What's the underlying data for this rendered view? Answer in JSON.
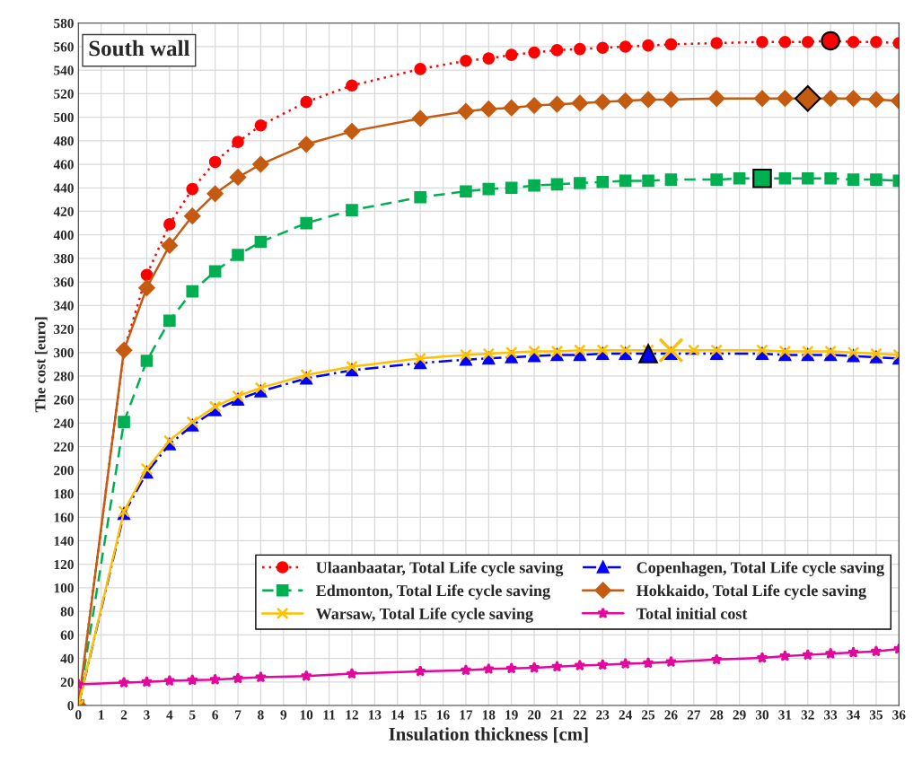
{
  "chart_data": {
    "type": "line",
    "title": "South wall",
    "xlabel": "Insulation thickness [cm]",
    "ylabel": "The cost [euro]",
    "xlim": [
      0,
      36
    ],
    "xticks": [
      0,
      1,
      2,
      3,
      4,
      5,
      6,
      7,
      8,
      9,
      10,
      11,
      12,
      13,
      14,
      15,
      16,
      17,
      18,
      19,
      20,
      21,
      22,
      23,
      24,
      25,
      26,
      27,
      28,
      29,
      30,
      31,
      32,
      33,
      34,
      35,
      36
    ],
    "ylim": [
      0,
      580
    ],
    "yticks": [
      0,
      20,
      40,
      60,
      80,
      100,
      120,
      140,
      160,
      180,
      200,
      220,
      240,
      260,
      280,
      300,
      320,
      340,
      360,
      380,
      400,
      420,
      440,
      460,
      480,
      500,
      520,
      540,
      560,
      580
    ],
    "grid": true,
    "legend": "bottom right",
    "series": [
      {
        "name": "Ulaanbaatar, Total Life cycle saving",
        "color": "#ff0000",
        "marker": "circle",
        "line_style": "dotted",
        "x": [
          0,
          2,
          3,
          4,
          5,
          6,
          7,
          8,
          10,
          12,
          15,
          17,
          18,
          19,
          20,
          21,
          22,
          23,
          24,
          25,
          26,
          28,
          30,
          31,
          32,
          33,
          34,
          35,
          36
        ],
        "values": [
          0,
          302,
          366,
          409,
          439,
          462,
          479,
          493,
          513,
          527,
          541,
          548,
          550,
          553,
          555,
          557,
          558,
          559,
          560,
          561,
          562,
          563,
          564,
          564,
          564,
          565,
          564,
          564,
          563
        ]
      },
      {
        "name": "Copenhagen, Total Life cycle saving",
        "color": "#0000ff",
        "marker": "triangle",
        "line_style": "dashdot",
        "x": [
          0,
          2,
          3,
          4,
          5,
          6,
          7,
          8,
          10,
          12,
          15,
          17,
          18,
          19,
          20,
          21,
          22,
          23,
          24,
          25,
          26,
          28,
          30,
          31,
          32,
          33,
          34,
          35,
          36
        ],
        "values": [
          0,
          163,
          198,
          222,
          238,
          251,
          260,
          267,
          278,
          285,
          291,
          294,
          295,
          296,
          297,
          298,
          298,
          299,
          299,
          299,
          299,
          299,
          299,
          298,
          298,
          298,
          297,
          296,
          295
        ]
      },
      {
        "name": "Edmonton, Total Life cycle saving",
        "color": "#00b050",
        "marker": "square",
        "line_style": "dashed",
        "x": [
          0,
          2,
          3,
          4,
          5,
          6,
          7,
          8,
          10,
          12,
          15,
          17,
          18,
          19,
          20,
          21,
          22,
          23,
          24,
          25,
          26,
          28,
          29,
          30,
          31,
          32,
          33,
          34,
          35,
          36
        ],
        "values": [
          0,
          241,
          293,
          327,
          352,
          369,
          383,
          394,
          410,
          421,
          432,
          437,
          439,
          440,
          442,
          443,
          444,
          445,
          446,
          446,
          447,
          447,
          448,
          448,
          448,
          448,
          448,
          447,
          447,
          446
        ]
      },
      {
        "name": "Hokkaido, Total Life cycle saving",
        "color": "#c55a11",
        "marker": "diamond",
        "line_style": "solid",
        "x": [
          0,
          2,
          3,
          4,
          5,
          6,
          7,
          8,
          10,
          12,
          15,
          17,
          18,
          19,
          20,
          21,
          22,
          23,
          24,
          25,
          26,
          28,
          30,
          31,
          32,
          33,
          34,
          35,
          36
        ],
        "values": [
          0,
          302,
          355,
          391,
          416,
          435,
          449,
          460,
          477,
          488,
          499,
          505,
          507,
          508,
          510,
          511,
          512,
          513,
          514,
          515,
          515,
          516,
          516,
          516,
          516,
          516,
          516,
          515,
          514
        ]
      },
      {
        "name": "Warsaw, Total Life cycle saving",
        "color": "#ffc000",
        "marker": "cross",
        "line_style": "solid",
        "x": [
          0,
          2,
          3,
          4,
          5,
          6,
          7,
          8,
          10,
          12,
          15,
          17,
          18,
          19,
          20,
          21,
          22,
          23,
          24,
          25,
          26,
          27,
          28,
          30,
          31,
          32,
          33,
          34,
          35,
          36
        ],
        "values": [
          0,
          165,
          201,
          225,
          241,
          254,
          263,
          270,
          281,
          288,
          295,
          298,
          299,
          300,
          301,
          301,
          302,
          302,
          302,
          302,
          302,
          302,
          302,
          302,
          301,
          301,
          301,
          300,
          299,
          298
        ]
      },
      {
        "name": "Total initial cost",
        "color": "#e3079c",
        "marker": "star",
        "line_style": "solid",
        "x": [
          0,
          2,
          3,
          4,
          5,
          6,
          7,
          8,
          10,
          12,
          15,
          17,
          18,
          19,
          20,
          21,
          22,
          23,
          24,
          25,
          26,
          28,
          30,
          31,
          32,
          33,
          34,
          35,
          36
        ],
        "values": [
          18,
          19.5,
          20,
          21,
          21.5,
          22,
          23,
          24,
          25,
          27,
          29,
          30,
          31,
          31.5,
          32,
          33,
          34,
          34.5,
          35.5,
          36,
          37,
          39,
          40.5,
          42,
          43,
          44,
          45,
          46,
          48
        ]
      },
      {
        "type": "scatter",
        "color": "#ff0000",
        "marker": "circle",
        "x": [
          33
        ],
        "values": [
          565
        ]
      },
      {
        "type": "scatter",
        "color": "#c55a11",
        "marker": "diamond",
        "x": [
          32
        ],
        "values": [
          516
        ]
      },
      {
        "type": "scatter",
        "color": "#00b050",
        "marker": "square",
        "x": [
          30
        ],
        "values": [
          448
        ]
      },
      {
        "type": "scatter",
        "color": "#0000ff",
        "marker": "triangle",
        "x": [
          25
        ],
        "values": [
          299
        ]
      },
      {
        "type": "scatter",
        "color": "#ffc000",
        "marker": "cross",
        "x": [
          26
        ],
        "values": [
          302
        ]
      }
    ]
  }
}
